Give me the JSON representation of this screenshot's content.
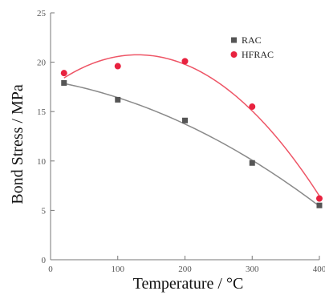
{
  "chart_data": {
    "type": "scatter",
    "title": "",
    "xlabel": "Temperature / °C",
    "ylabel": "Bond Stress / MPa",
    "xlim": [
      0,
      400
    ],
    "ylim": [
      0,
      25
    ],
    "xticks": [
      0,
      100,
      200,
      300,
      400
    ],
    "yticks": [
      0,
      5,
      10,
      15,
      20,
      25
    ],
    "grid": false,
    "legend_position": "top-right",
    "series": [
      {
        "name": "RAC",
        "marker": "square",
        "color": "#555555",
        "fit_color": "#8a8a8a",
        "x": [
          20,
          100,
          200,
          300,
          400
        ],
        "y": [
          17.9,
          16.2,
          14.1,
          9.8,
          5.5
        ]
      },
      {
        "name": "HFRAC",
        "marker": "circle",
        "color": "#e8223f",
        "fit_color": "#ee5566",
        "x": [
          20,
          100,
          200,
          300,
          400
        ],
        "y": [
          18.9,
          19.6,
          20.1,
          15.5,
          6.2
        ]
      }
    ]
  }
}
